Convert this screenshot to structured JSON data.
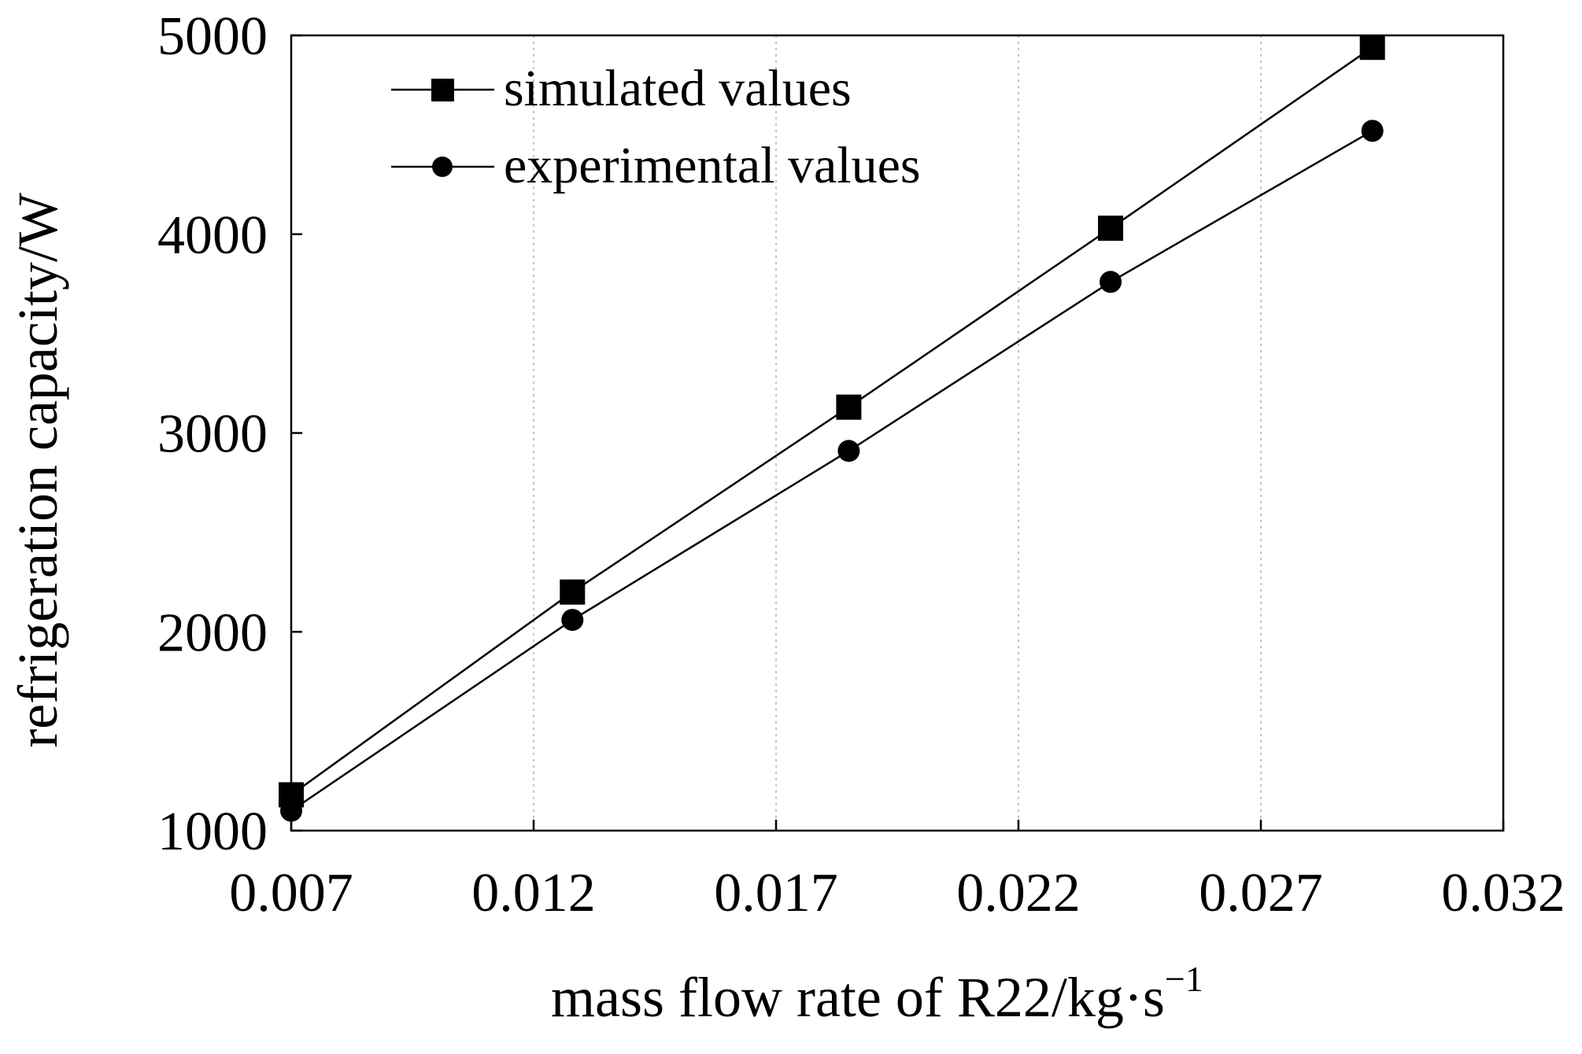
{
  "chart_data": {
    "type": "line",
    "title": "",
    "xlabel": "mass flow rate of R22/kg·s",
    "xlabel_superscript": "−1",
    "ylabel": "refrigeration  capacity/W",
    "xlim": [
      0.007,
      0.032
    ],
    "ylim": [
      1000,
      5000
    ],
    "x_ticks": [
      "0.007",
      "0.012",
      "0.017",
      "0.022",
      "0.027",
      "0.032"
    ],
    "y_ticks": [
      "1000",
      "2000",
      "3000",
      "4000",
      "5000"
    ],
    "grid": "vertical-dotted",
    "legend_position": "top-left",
    "series": [
      {
        "name": "simulated values",
        "marker": "square",
        "x": [
          0.007,
          0.0128,
          0.0185,
          0.0239,
          0.0293
        ],
        "y": [
          1180,
          2200,
          3130,
          4030,
          4940
        ]
      },
      {
        "name": "experimental values",
        "marker": "circle",
        "x": [
          0.007,
          0.0128,
          0.0185,
          0.0239,
          0.0293
        ],
        "y": [
          1100,
          2060,
          2910,
          3760,
          4520
        ]
      }
    ]
  }
}
